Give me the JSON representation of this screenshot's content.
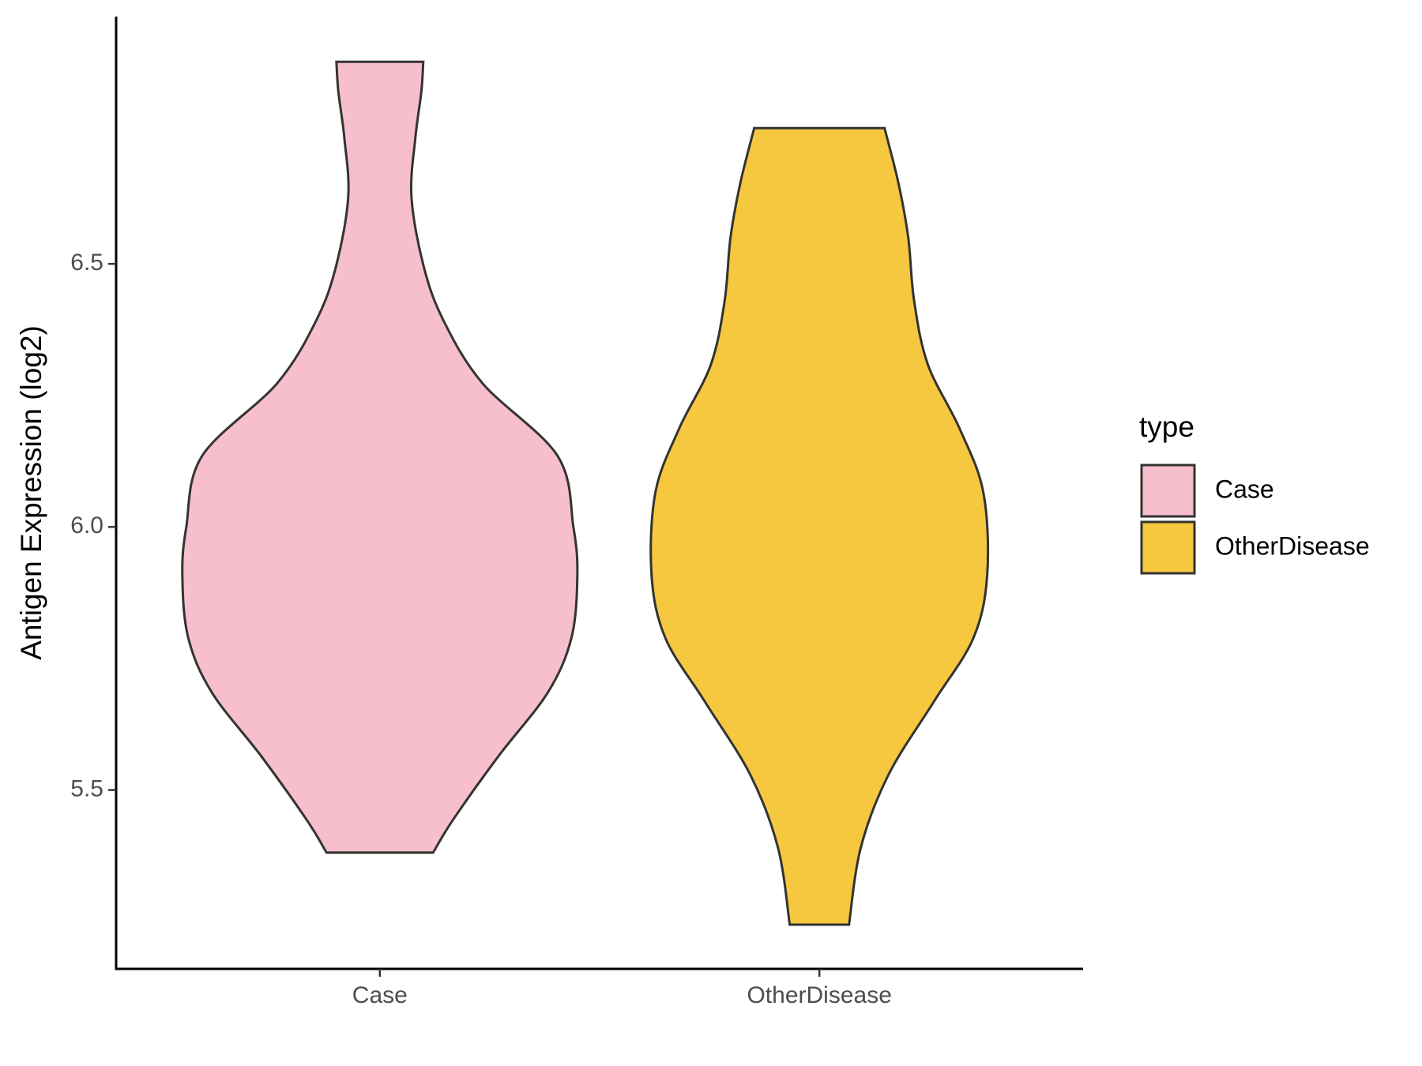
{
  "chart_data": {
    "type": "violin",
    "y_label": "Antigen Expression (log2)",
    "categories": [
      "Case",
      "OtherDisease"
    ],
    "legend_title": "type",
    "series": [
      {
        "name": "Case",
        "color": "#F7BFCB",
        "y": [
          6.884,
          6.827,
          6.74,
          6.628,
          6.498,
          6.394,
          6.273,
          6.135,
          6.0,
          5.907,
          5.789,
          5.685,
          5.564,
          5.443,
          5.381
        ],
        "density": [
          0.22,
          0.21,
          0.18,
          0.16,
          0.22,
          0.32,
          0.52,
          0.9,
          0.98,
          1.0,
          0.97,
          0.85,
          0.6,
          0.37,
          0.27
        ]
      },
      {
        "name": "OtherDisease",
        "color": "#F5C83F",
        "y": [
          6.758,
          6.654,
          6.55,
          6.429,
          6.308,
          6.187,
          6.066,
          5.91,
          5.789,
          5.668,
          5.529,
          5.391,
          5.244
        ],
        "density": [
          0.33,
          0.4,
          0.45,
          0.48,
          0.55,
          0.71,
          0.83,
          0.85,
          0.78,
          0.58,
          0.35,
          0.21,
          0.15
        ]
      }
    ],
    "ylim": [
      5.16,
      6.97
    ],
    "yticks": [
      5.5,
      {
        "value": 6,
        "label": "6.0"
      },
      6.5
    ],
    "grid": false,
    "legend": "right"
  }
}
